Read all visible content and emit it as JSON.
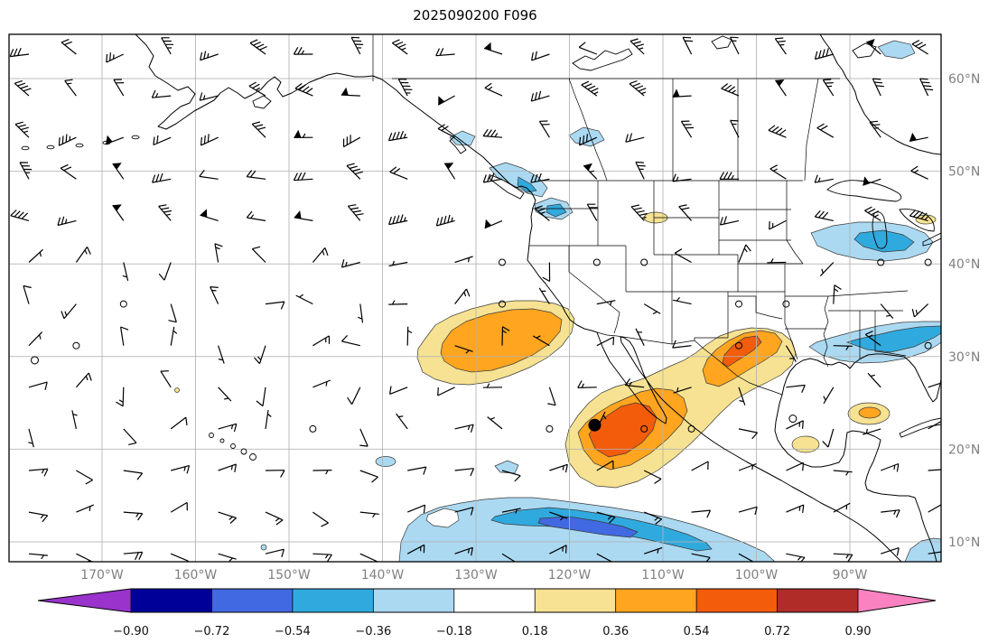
{
  "title": "2025090200 F096",
  "chart_data": {
    "type": "map",
    "subtype": "wind-barb-anomaly-contour-chart",
    "title": "2025090200 F096",
    "projection_extent": {
      "lon_min": -180,
      "lon_max": -80,
      "lat_min": 8,
      "lat_max": 65
    },
    "grid": true,
    "x_ticks": [
      "170°W",
      "160°W",
      "150°W",
      "140°W",
      "130°W",
      "120°W",
      "110°W",
      "100°W",
      "90°W"
    ],
    "y_ticks": [
      "60°N",
      "50°N",
      "40°N",
      "30°N",
      "20°N",
      "10°N"
    ],
    "palette": {
      "p_under": "#9933CC",
      "n4": "#000099",
      "n3": "#4169E1",
      "n2": "#30AADE",
      "n1": "#ABD9F2",
      "z": "#FFFFFF",
      "p1": "#F6E292",
      "p2": "#FFA51F",
      "p3": "#F25C0A",
      "p4": "#B02C28",
      "p_over": "#FA82C0"
    },
    "colorbar": {
      "orientation": "horizontal",
      "extend": "both",
      "tick_labels": [
        "−0.90",
        "−0.72",
        "−0.54",
        "−0.36",
        "−0.18",
        "0.18",
        "0.36",
        "0.54",
        "0.72",
        "0.90"
      ],
      "levels": [
        -0.9,
        -0.72,
        -0.54,
        -0.36,
        -0.18,
        0.18,
        0.36,
        0.54,
        0.72,
        0.9
      ],
      "segment_color_keys": [
        "n4",
        "n3",
        "n2",
        "n1",
        "z",
        "p1",
        "p2",
        "p3",
        "p4"
      ],
      "under_key": "p_under",
      "over_key": "p_over"
    },
    "marker": {
      "name": "position-dot",
      "lon": -117.3,
      "lat": 22.6
    },
    "calm_circles": [
      {
        "lon": -177.2,
        "lat": 29.6
      },
      {
        "lon": -96.1,
        "lat": 23.3
      }
    ],
    "anomalies": [
      {
        "sign": "positive",
        "region": "NE Pacific off California (~135-125W, 27-34N)",
        "peak_level": "0.36 to 0.54"
      },
      {
        "sign": "positive",
        "region": "Baja California / E Pacific (~120-108W, 18-28N)",
        "peak_level": "0.54 to 0.72",
        "note": "black dot marker near 117W 23N"
      },
      {
        "sign": "positive",
        "region": "N Mexico / S Texas (~108-96W, 24-32N)",
        "peak_level": "0.54 to 0.72"
      },
      {
        "sign": "negative",
        "region": "Tropical band (~140-95W, 8-14N)",
        "peak_level": "-0.54 to -0.72"
      },
      {
        "sign": "negative",
        "region": "Pacific Northwest coast (~128-120W, 44-51N)",
        "peak_level": "-0.36 to -0.54"
      },
      {
        "sign": "negative",
        "region": "Great Lakes (~92-82W, 42-46N)",
        "peak_level": "-0.36 to -0.54"
      },
      {
        "sign": "negative",
        "region": "SE US / Gulf Stream (~92-80W, 28-33N)",
        "peak_level": "-0.36 to -0.54"
      }
    ],
    "wind_field": {
      "style": "barbs",
      "cols": 20,
      "rows": 13,
      "seed": 13,
      "units": "kt",
      "model": "latitude-banded",
      "speed_kt_north": [
        12,
        54
      ],
      "speed_kt_mid": [
        0,
        17
      ],
      "speed_kt_tropics": [
        5,
        18
      ]
    }
  }
}
